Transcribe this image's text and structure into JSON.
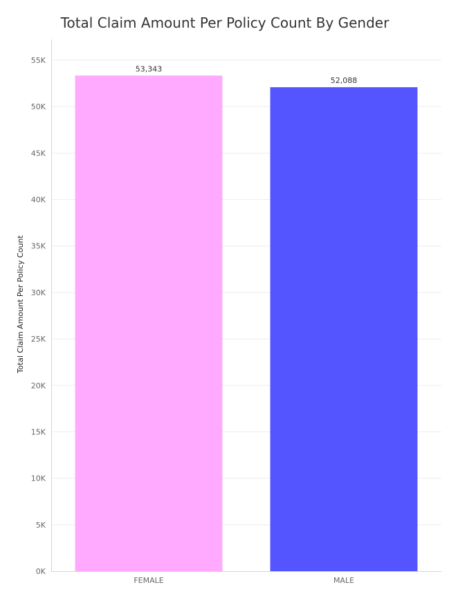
{
  "chart_data": {
    "type": "bar",
    "title": "Total Claim Amount Per Policy Count By Gender",
    "xlabel": "",
    "ylabel": "Total Claim Amount Per Policy Count",
    "categories": [
      "FEMALE",
      "MALE"
    ],
    "values": [
      53343,
      52088
    ],
    "value_labels": [
      "53,343",
      "52,088"
    ],
    "ylim": [
      0,
      55000
    ],
    "yticks": [
      0,
      5000,
      10000,
      15000,
      20000,
      25000,
      30000,
      35000,
      40000,
      45000,
      50000,
      55000
    ],
    "ytick_labels": [
      "0K",
      "5K",
      "10K",
      "15K",
      "20K",
      "25K",
      "30K",
      "35K",
      "40K",
      "45K",
      "50K",
      "55K"
    ],
    "bar_colors": [
      "#ffaaff",
      "#5555ff"
    ],
    "grid": true,
    "legend": "none"
  }
}
